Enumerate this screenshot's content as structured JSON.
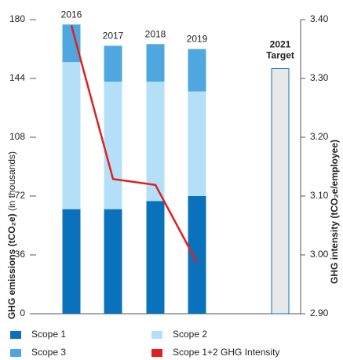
{
  "chart_data": {
    "type": "stacked_bar_line",
    "categories": [
      "2016",
      "2017",
      "2018",
      "2019"
    ],
    "series": [
      {
        "name": "Scope 1",
        "color": "#0a72bc",
        "values": [
          64,
          64,
          69,
          72
        ]
      },
      {
        "name": "Scope 2",
        "color": "#b3e0f8",
        "values": [
          90,
          78,
          73,
          64
        ]
      },
      {
        "name": "Scope 3",
        "color": "#4ea8df",
        "values": [
          23,
          22,
          23,
          26
        ]
      },
      {
        "name": "Scope 1+2 GHG Intensity",
        "color": "#e02020",
        "axis": "y2",
        "values": [
          3.39,
          3.129,
          3.119,
          2.987
        ]
      }
    ],
    "target": {
      "label": [
        "2021",
        "Target"
      ],
      "value": 150,
      "color": "#e8e8e8",
      "edge": "#0a72bc"
    },
    "y_label": "GHG emissions (tCO₂e)",
    "y_label_note": "(in thousands)",
    "y2_label": "GHG intensity (tCO₂e/employee)",
    "ylim": [
      0,
      180
    ],
    "yticks": [
      0,
      36,
      72,
      108,
      144,
      180
    ],
    "y2lim": [
      2.9,
      3.4
    ],
    "y2ticks": [
      {
        "value": 2.9,
        "label": "2.90"
      },
      {
        "value": 3.0,
        "label": "3.00"
      },
      {
        "value": 3.1,
        "label": "3.10"
      },
      {
        "value": 3.2,
        "label": "3.20"
      },
      {
        "value": 3.3,
        "label": "3.30"
      },
      {
        "value": 3.4,
        "label": "3.40"
      }
    ]
  }
}
